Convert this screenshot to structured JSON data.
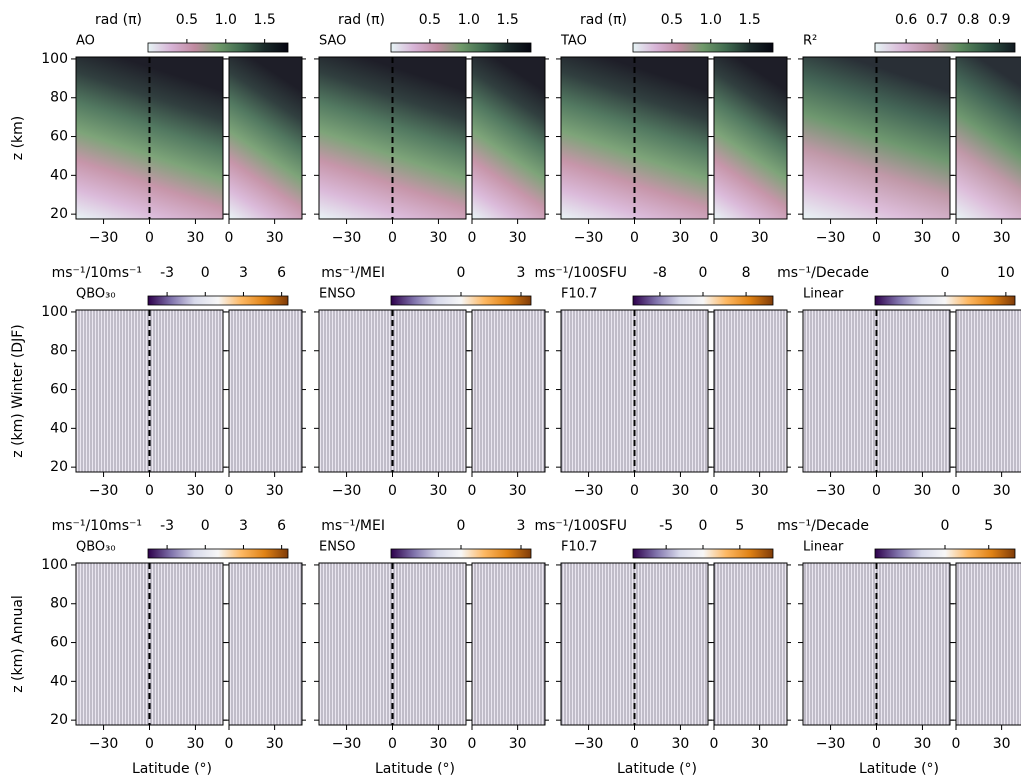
{
  "chart_data": [
    {
      "type": "heatmap",
      "title": "AO",
      "colorbar_label": "rad (π)",
      "colorbar_lim": [
        0,
        1.8
      ],
      "colorbar_ticks": [
        0.5,
        {
          "value": 1,
          "label": "1.0"
        },
        1.5
      ],
      "colormap": [
        "#e6f4f5",
        "#d7b3d6",
        "#c08aa0",
        "#6f9a6a",
        "#3f6a4f",
        "#1a2a2a",
        "#050510"
      ],
      "ylabel": "z (km)",
      "show_ytick_labels": true,
      "hatched": false,
      "ylim": [
        17.5,
        101
      ],
      "yticks": [
        20,
        40,
        60,
        80,
        100
      ],
      "panels": [
        {
          "xlim": [
            -48,
            48
          ],
          "xticks": [
            {
              "value": -30,
              "label": "−30"
            },
            0,
            30
          ]
        },
        {
          "xlim": [
            0,
            48
          ],
          "xticks": [
            0,
            30
          ]
        }
      ]
    },
    {
      "type": "heatmap",
      "title": "SAO",
      "colorbar_label": "rad (π)",
      "colorbar_lim": [
        0,
        1.8
      ],
      "colorbar_ticks": [
        0.5,
        {
          "value": 1,
          "label": "1.0"
        },
        1.5
      ],
      "colormap": [
        "#e6f4f5",
        "#d7b3d6",
        "#c08aa0",
        "#6f9a6a",
        "#3f6a4f",
        "#1a2a2a",
        "#050510"
      ],
      "show_ytick_labels": false,
      "hatched": false,
      "ylim": [
        17.5,
        101
      ],
      "yticks": [
        20,
        40,
        60,
        80,
        100
      ],
      "panels": [
        {
          "xlim": [
            -48,
            48
          ],
          "xticks": [
            {
              "value": -30,
              "label": "−30"
            },
            0,
            30
          ]
        },
        {
          "xlim": [
            0,
            48
          ],
          "xticks": [
            0,
            30
          ]
        }
      ]
    },
    {
      "type": "heatmap",
      "title": "TAO",
      "colorbar_label": "rad (π)",
      "colorbar_lim": [
        0,
        1.8
      ],
      "colorbar_ticks": [
        0.5,
        {
          "value": 1,
          "label": "1.0"
        },
        1.5
      ],
      "colormap": [
        "#e6f4f5",
        "#d7b3d6",
        "#c08aa0",
        "#6f9a6a",
        "#3f6a4f",
        "#1a2a2a",
        "#050510"
      ],
      "show_ytick_labels": false,
      "hatched": false,
      "ylim": [
        17.5,
        101
      ],
      "yticks": [
        20,
        40,
        60,
        80,
        100
      ],
      "panels": [
        {
          "xlim": [
            -48,
            48
          ],
          "xticks": [
            {
              "value": -30,
              "label": "−30"
            },
            0,
            30
          ]
        },
        {
          "xlim": [
            0,
            48
          ],
          "xticks": [
            0,
            30
          ]
        }
      ]
    },
    {
      "type": "heatmap",
      "title": "R²",
      "colorbar_lim": [
        0.5,
        0.95
      ],
      "colorbar_ticks": [
        0.6,
        0.7,
        0.8,
        0.9
      ],
      "colormap": [
        "#e6f4f5",
        "#d9b6d6",
        "#b98d9e",
        "#5e8c5f",
        "#2f5544",
        "#111820"
      ],
      "show_ytick_labels": false,
      "hatched": false,
      "ylim": [
        17.5,
        101
      ],
      "yticks": [
        20,
        40,
        60,
        80,
        100
      ],
      "panels": [
        {
          "xlim": [
            -48,
            48
          ],
          "xticks": [
            {
              "value": -30,
              "label": "−30"
            },
            0,
            30
          ]
        },
        {
          "xlim": [
            0,
            48
          ],
          "xticks": [
            0,
            30
          ]
        }
      ]
    },
    {
      "type": "heatmap",
      "title": "QBO₃₀",
      "colorbar_label": "ms⁻¹/10ms⁻¹",
      "colorbar_lim": [
        -4.5,
        6.5
      ],
      "colorbar_ticks": [
        -3,
        0,
        3,
        6
      ],
      "colormap": [
        "#2d004b",
        "#8073ac",
        "#d8daeb",
        "#f7f7f7",
        "#fdb863",
        "#e08214",
        "#7f3b08"
      ],
      "ylabel": "z (km) Winter (DJF)",
      "show_ytick_labels": true,
      "hatched": true,
      "ylim": [
        17.5,
        101
      ],
      "yticks": [
        20,
        40,
        60,
        80,
        100
      ],
      "panels": [
        {
          "xlim": [
            -48,
            48
          ],
          "xticks": [
            {
              "value": -30,
              "label": "−30"
            },
            0,
            30
          ]
        },
        {
          "xlim": [
            0,
            48
          ],
          "xticks": [
            0,
            30
          ]
        }
      ]
    },
    {
      "type": "heatmap",
      "title": "ENSO",
      "colorbar_label": "ms⁻¹/MEI",
      "colorbar_lim": [
        -3.5,
        3.5
      ],
      "colorbar_ticks": [
        0,
        3
      ],
      "colormap": [
        "#2d004b",
        "#8073ac",
        "#d8daeb",
        "#f7f7f7",
        "#fdb863",
        "#e08214",
        "#7f3b08"
      ],
      "show_ytick_labels": false,
      "hatched": true,
      "ylim": [
        17.5,
        101
      ],
      "yticks": [
        20,
        40,
        60,
        80,
        100
      ],
      "panels": [
        {
          "xlim": [
            -48,
            48
          ],
          "xticks": [
            {
              "value": -30,
              "label": "−30"
            },
            0,
            30
          ]
        },
        {
          "xlim": [
            0,
            48
          ],
          "xticks": [
            0,
            30
          ]
        }
      ]
    },
    {
      "type": "heatmap",
      "title": "F10.7",
      "colorbar_label": "ms⁻¹/100SFU",
      "colorbar_lim": [
        -13,
        13
      ],
      "colorbar_ticks": [
        -8,
        0,
        8
      ],
      "colormap": [
        "#2d004b",
        "#8073ac",
        "#d8daeb",
        "#f7f7f7",
        "#fdb863",
        "#e08214",
        "#7f3b08"
      ],
      "show_ytick_labels": false,
      "hatched": true,
      "ylim": [
        17.5,
        101
      ],
      "yticks": [
        20,
        40,
        60,
        80,
        100
      ],
      "panels": [
        {
          "xlim": [
            -48,
            48
          ],
          "xticks": [
            {
              "value": -30,
              "label": "−30"
            },
            0,
            30
          ]
        },
        {
          "xlim": [
            0,
            48
          ],
          "xticks": [
            0,
            30
          ]
        }
      ]
    },
    {
      "type": "heatmap",
      "title": "Linear",
      "colorbar_label": "ms⁻¹/Decade",
      "colorbar_lim": [
        -11.5,
        11.5
      ],
      "colorbar_ticks": [
        0,
        10
      ],
      "colormap": [
        "#2d004b",
        "#8073ac",
        "#d8daeb",
        "#f7f7f7",
        "#fdb863",
        "#e08214",
        "#7f3b08"
      ],
      "show_ytick_labels": false,
      "hatched": true,
      "ylim": [
        17.5,
        101
      ],
      "yticks": [
        20,
        40,
        60,
        80,
        100
      ],
      "panels": [
        {
          "xlim": [
            -48,
            48
          ],
          "xticks": [
            {
              "value": -30,
              "label": "−30"
            },
            0,
            30
          ]
        },
        {
          "xlim": [
            0,
            48
          ],
          "xticks": [
            0,
            30
          ]
        }
      ]
    },
    {
      "type": "heatmap",
      "title": "QBO₃₀",
      "colorbar_label": "ms⁻¹/10ms⁻¹",
      "colorbar_lim": [
        -4.5,
        6.5
      ],
      "colorbar_ticks": [
        -3,
        0,
        3,
        6
      ],
      "colormap": [
        "#2d004b",
        "#8073ac",
        "#d8daeb",
        "#f7f7f7",
        "#fdb863",
        "#e08214",
        "#7f3b08"
      ],
      "ylabel": "z (km) Annual",
      "xlabel": "Latitude (°)",
      "show_ytick_labels": true,
      "hatched": true,
      "ylim": [
        17.5,
        101
      ],
      "yticks": [
        20,
        40,
        60,
        80,
        100
      ],
      "panels": [
        {
          "xlim": [
            -48,
            48
          ],
          "xticks": [
            {
              "value": -30,
              "label": "−30"
            },
            0,
            30
          ]
        },
        {
          "xlim": [
            0,
            48
          ],
          "xticks": [
            0,
            30
          ]
        }
      ]
    },
    {
      "type": "heatmap",
      "title": "ENSO",
      "colorbar_label": "ms⁻¹/MEI",
      "colorbar_lim": [
        -3.5,
        3.5
      ],
      "colorbar_ticks": [
        0,
        3
      ],
      "colormap": [
        "#2d004b",
        "#8073ac",
        "#d8daeb",
        "#f7f7f7",
        "#fdb863",
        "#e08214",
        "#7f3b08"
      ],
      "xlabel": "Latitude (°)",
      "show_ytick_labels": false,
      "hatched": true,
      "ylim": [
        17.5,
        101
      ],
      "yticks": [
        20,
        40,
        60,
        80,
        100
      ],
      "panels": [
        {
          "xlim": [
            -48,
            48
          ],
          "xticks": [
            {
              "value": -30,
              "label": "−30"
            },
            0,
            30
          ]
        },
        {
          "xlim": [
            0,
            48
          ],
          "xticks": [
            0,
            30
          ]
        }
      ]
    },
    {
      "type": "heatmap",
      "title": "F10.7",
      "colorbar_label": "ms⁻¹/100SFU",
      "colorbar_lim": [
        -9.5,
        9.5
      ],
      "colorbar_ticks": [
        -5,
        0,
        5
      ],
      "colormap": [
        "#2d004b",
        "#8073ac",
        "#d8daeb",
        "#f7f7f7",
        "#fdb863",
        "#e08214",
        "#7f3b08"
      ],
      "xlabel": "Latitude (°)",
      "show_ytick_labels": false,
      "hatched": true,
      "ylim": [
        17.5,
        101
      ],
      "yticks": [
        20,
        40,
        60,
        80,
        100
      ],
      "panels": [
        {
          "xlim": [
            -48,
            48
          ],
          "xticks": [
            {
              "value": -30,
              "label": "−30"
            },
            0,
            30
          ]
        },
        {
          "xlim": [
            0,
            48
          ],
          "xticks": [
            0,
            30
          ]
        }
      ]
    },
    {
      "type": "heatmap",
      "title": "Linear",
      "colorbar_label": "ms⁻¹/Decade",
      "colorbar_lim": [
        -8,
        8
      ],
      "colorbar_ticks": [
        0,
        5
      ],
      "colormap": [
        "#2d004b",
        "#8073ac",
        "#d8daeb",
        "#f7f7f7",
        "#fdb863",
        "#e08214",
        "#7f3b08"
      ],
      "xlabel": "Latitude (°)",
      "show_ytick_labels": false,
      "hatched": true,
      "ylim": [
        17.5,
        101
      ],
      "yticks": [
        20,
        40,
        60,
        80,
        100
      ],
      "panels": [
        {
          "xlim": [
            -48,
            48
          ],
          "xticks": [
            {
              "value": -30,
              "label": "−30"
            },
            0,
            30
          ]
        },
        {
          "xlim": [
            0,
            48
          ],
          "xticks": [
            0,
            30
          ]
        }
      ]
    }
  ]
}
